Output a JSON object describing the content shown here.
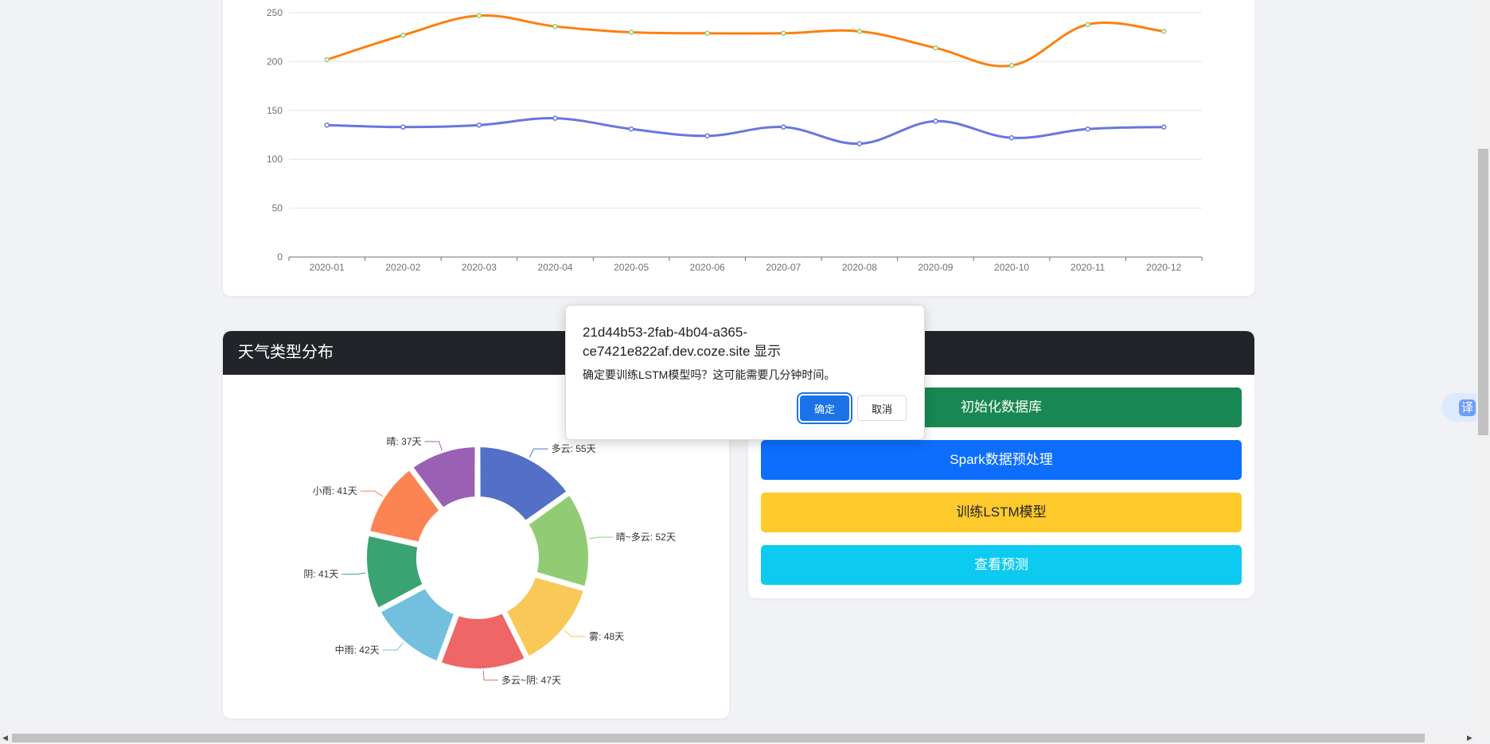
{
  "line_chart": {
    "chart_data": {
      "type": "line",
      "x": [
        "2020-01",
        "2020-02",
        "2020-03",
        "2020-04",
        "2020-05",
        "2020-06",
        "2020-07",
        "2020-08",
        "2020-09",
        "2020-10",
        "2020-11",
        "2020-12"
      ],
      "series": [
        {
          "color": "#fd7f0e",
          "values": [
            202,
            227,
            247,
            236,
            230,
            229,
            229,
            231,
            214,
            196,
            238,
            231
          ]
        },
        {
          "color": "#6677e0",
          "values": [
            135,
            133,
            135,
            142,
            131,
            124,
            133,
            116,
            139,
            122,
            131,
            133
          ]
        }
      ],
      "y_ticks": [
        0,
        50,
        100,
        150,
        200,
        250
      ],
      "ylim": [
        0,
        250
      ],
      "grid": true
    }
  },
  "pie_section": {
    "title": "天气类型分布",
    "chart_data": {
      "type": "pie",
      "donut": true,
      "slices": [
        {
          "label": "多云: 55天",
          "value": 55,
          "color": "#5470c6"
        },
        {
          "label": "晴~多云: 52天",
          "value": 52,
          "color": "#91cc75"
        },
        {
          "label": "雾: 48天",
          "value": 48,
          "color": "#fac858"
        },
        {
          "label": "多云~阴: 47天",
          "value": 47,
          "color": "#ee6666"
        },
        {
          "label": "中雨: 42天",
          "value": 42,
          "color": "#73c0de"
        },
        {
          "label": "阴: 41天",
          "value": 41,
          "color": "#3ba272"
        },
        {
          "label": "小雨: 41天",
          "value": 41,
          "color": "#fc8452"
        },
        {
          "label": "晴: 37天",
          "value": 37,
          "color": "#9a60b4"
        }
      ]
    }
  },
  "controls": {
    "init_db": "初始化数据库",
    "spark": "Spark数据预处理",
    "train": "训练LSTM模型",
    "predict": "查看预测"
  },
  "dialog": {
    "origin": "21d44b53-2fab-4b04-a365-ce7421e822af.dev.coze.site 显示",
    "message": "确定要训练LSTM模型吗？这可能需要几分钟时间。",
    "ok": "确定",
    "cancel": "取消"
  },
  "translate": {
    "label": "译"
  }
}
